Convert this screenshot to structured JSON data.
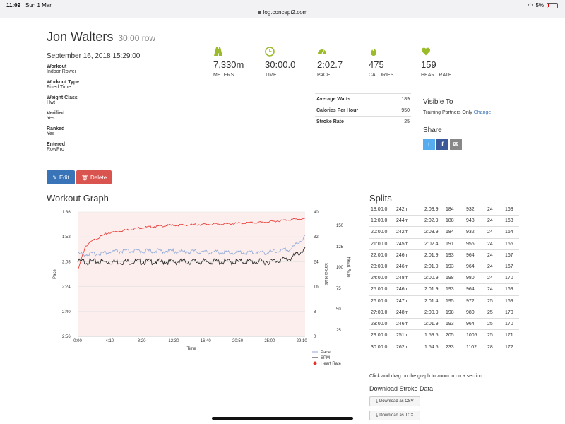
{
  "status": {
    "time": "11:09",
    "date": "Sun 1 Mar",
    "url": "log.concept2.com",
    "battery": "5%"
  },
  "header": {
    "name": "Jon Walters",
    "subtitle": "30:00 row",
    "datetime": "September 16, 2018 15:29:00"
  },
  "details": [
    {
      "label": "Workout",
      "value": "Indoor Rower"
    },
    {
      "label": "Workout Type",
      "value": "Fixed Time"
    },
    {
      "label": "Weight Class",
      "value": "Hwt"
    },
    {
      "label": "Verified",
      "value": "Yes"
    },
    {
      "label": "Ranked",
      "value": "Yes"
    },
    {
      "label": "Entered",
      "value": "RowPro"
    }
  ],
  "actions": {
    "edit": "Edit",
    "delete": "Delete"
  },
  "stats": [
    {
      "icon": "road-icon",
      "value": "7,330m",
      "label": "METERS"
    },
    {
      "icon": "clock-icon",
      "value": "30:00.0",
      "label": "TIME"
    },
    {
      "icon": "speedometer-icon",
      "value": "2:02.7",
      "label": "PACE"
    },
    {
      "icon": "flame-icon",
      "value": "475",
      "label": "CALORIES"
    },
    {
      "icon": "heart-icon",
      "value": "159",
      "label": "HEART RATE"
    }
  ],
  "metrics": [
    {
      "label": "Average Watts",
      "value": "189"
    },
    {
      "label": "Calories Per Hour",
      "value": "950"
    },
    {
      "label": "Stroke Rate",
      "value": "25"
    }
  ],
  "visibility": {
    "title": "Visible To",
    "value": "Training Partners Only",
    "change": "Change"
  },
  "share": {
    "title": "Share",
    "buttons": [
      "t",
      "f",
      "✉"
    ]
  },
  "graph": {
    "title": "Workout Graph",
    "hint": "Click and drag on the graph to zoom in on a section.",
    "download_title": "Download Stroke Data",
    "csv": "Download as CSV",
    "tcx": "Download as TCX",
    "colors": {
      "pace": "#8fa8d8",
      "spm": "#222222",
      "heart_rate": "#e8302a",
      "band": "#fbeeed"
    }
  },
  "chart_data": {
    "type": "line",
    "title": "",
    "xlabel": "Time",
    "x_ticks": [
      "0:00",
      "4:10",
      "8:20",
      "12:30",
      "16:40",
      "20:50",
      "25:00",
      "29:10"
    ],
    "y_left_label": "Pace",
    "y_left_ticks": [
      "1:36",
      "1:52",
      "2:08",
      "2:24",
      "2:40",
      "2:56"
    ],
    "y_right1_label": "Stroke Rate",
    "y_right1_ticks": [
      "40",
      "32",
      "24",
      "16",
      "8",
      "0"
    ],
    "y_right2_label": "Heart Rate",
    "y_right2_ticks": [
      "150",
      "125",
      "100",
      "75",
      "50",
      "25"
    ],
    "legend": [
      "Pace",
      "SPM",
      "Heart Rate"
    ],
    "series": [
      {
        "name": "Heart Rate",
        "x": [
          0,
          1,
          2,
          4,
          8,
          12,
          16,
          20,
          25,
          28,
          30
        ],
        "y": [
          95,
          125,
          132,
          141,
          147,
          150,
          151,
          152,
          154,
          157,
          158
        ]
      },
      {
        "name": "Pace",
        "x": [
          0,
          2,
          5,
          10,
          15,
          20,
          25,
          28,
          30
        ],
        "y": [
          123.0,
          123.0,
          121.5,
          121.0,
          121.5,
          122.0,
          122.0,
          120.0,
          112.0
        ]
      },
      {
        "name": "SPM",
        "x": [
          0,
          2,
          5,
          10,
          15,
          20,
          25,
          28,
          30
        ],
        "y": [
          24,
          24,
          24,
          24,
          24,
          24,
          24,
          25,
          28
        ]
      }
    ]
  },
  "splits": {
    "title": "Splits",
    "rows": [
      [
        "18:00.0",
        "242m",
        "2:03.9",
        "184",
        "932",
        "24",
        "163"
      ],
      [
        "19:00.0",
        "244m",
        "2:02.9",
        "188",
        "948",
        "24",
        "163"
      ],
      [
        "20:00.0",
        "242m",
        "2:03.9",
        "184",
        "932",
        "24",
        "164"
      ],
      [
        "21:00.0",
        "245m",
        "2:02.4",
        "191",
        "956",
        "24",
        "165"
      ],
      [
        "22:00.0",
        "246m",
        "2:01.9",
        "193",
        "964",
        "24",
        "167"
      ],
      [
        "23:00.0",
        "246m",
        "2:01.9",
        "193",
        "964",
        "24",
        "167"
      ],
      [
        "24:00.0",
        "248m",
        "2:00.9",
        "198",
        "980",
        "24",
        "170"
      ],
      [
        "25:00.0",
        "246m",
        "2:01.9",
        "193",
        "964",
        "24",
        "169"
      ],
      [
        "26:00.0",
        "247m",
        "2:01.4",
        "195",
        "972",
        "25",
        "169"
      ],
      [
        "27:00.0",
        "248m",
        "2:00.9",
        "198",
        "980",
        "25",
        "170"
      ],
      [
        "28:00.0",
        "246m",
        "2:01.9",
        "193",
        "964",
        "25",
        "170"
      ],
      [
        "29:00.0",
        "251m",
        "1:59.5",
        "205",
        "1005",
        "25",
        "171"
      ],
      [
        "30:00.0",
        "262m",
        "1:54.5",
        "233",
        "1102",
        "28",
        "172"
      ]
    ]
  }
}
